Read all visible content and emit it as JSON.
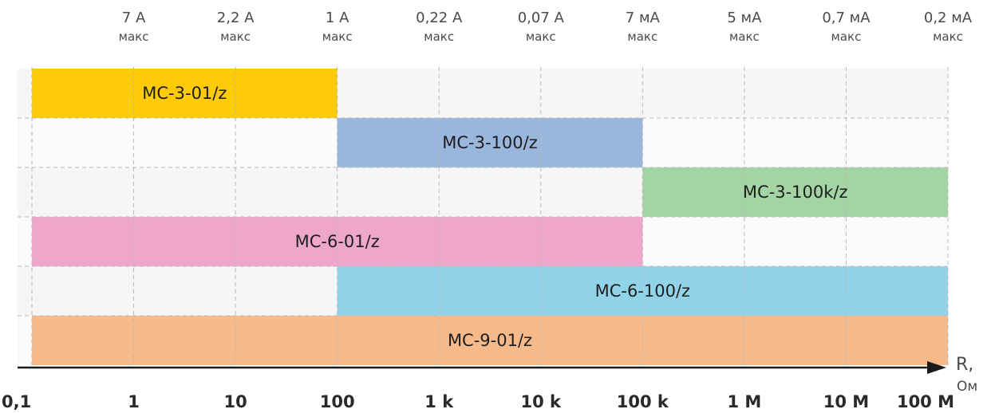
{
  "chart_data": {
    "type": "bar",
    "orientation": "horizontal-range",
    "x_scale": "log",
    "x_ticks": [
      "0,1",
      "1",
      "10",
      "100",
      "1 k",
      "10 k",
      "100 k",
      "1 M",
      "10 M",
      "100 M"
    ],
    "x_tick_values": [
      0.1,
      1,
      10,
      100,
      1000,
      10000,
      100000,
      1000000,
      10000000,
      100000000
    ],
    "xlim": [
      0.1,
      100000000
    ],
    "xlabel": "R,",
    "xunit": "Ом",
    "current_limits": [
      {
        "value": "7 A",
        "sub": "макс",
        "at": 1
      },
      {
        "value": "2,2 A",
        "sub": "макс",
        "at": 10
      },
      {
        "value": "1 A",
        "sub": "макс",
        "at": 100
      },
      {
        "value": "0,22 A",
        "sub": "макс",
        "at": 1000
      },
      {
        "value": "0,07 A",
        "sub": "макс",
        "at": 10000
      },
      {
        "value": "7 мA",
        "sub": "макс",
        "at": 100000
      },
      {
        "value": "5 мA",
        "sub": "макс",
        "at": 1000000
      },
      {
        "value": "0,7 мA",
        "sub": "макс",
        "at": 10000000
      },
      {
        "value": "0,2 мA",
        "sub": "макс",
        "at": 100000000
      }
    ],
    "series": [
      {
        "name": "МС-3-01/z",
        "range": [
          0.1,
          100
        ],
        "color": "#fecb09"
      },
      {
        "name": "МС-3-100/z",
        "range": [
          100,
          100000
        ],
        "color": "#99b6dd"
      },
      {
        "name": "МС-3-100k/z",
        "range": [
          100000,
          100000000
        ],
        "color": "#a3d4a4"
      },
      {
        "name": "МС-6-01/z",
        "range": [
          0.1,
          100000
        ],
        "color": "#eea7cb"
      },
      {
        "name": "МС-6-100/z",
        "range": [
          100,
          100000000
        ],
        "color": "#91d4ea"
      },
      {
        "name": "МС-9-01/z",
        "range": [
          0.1,
          100000000
        ],
        "color": "#f6ba8a"
      }
    ],
    "grid": true
  }
}
